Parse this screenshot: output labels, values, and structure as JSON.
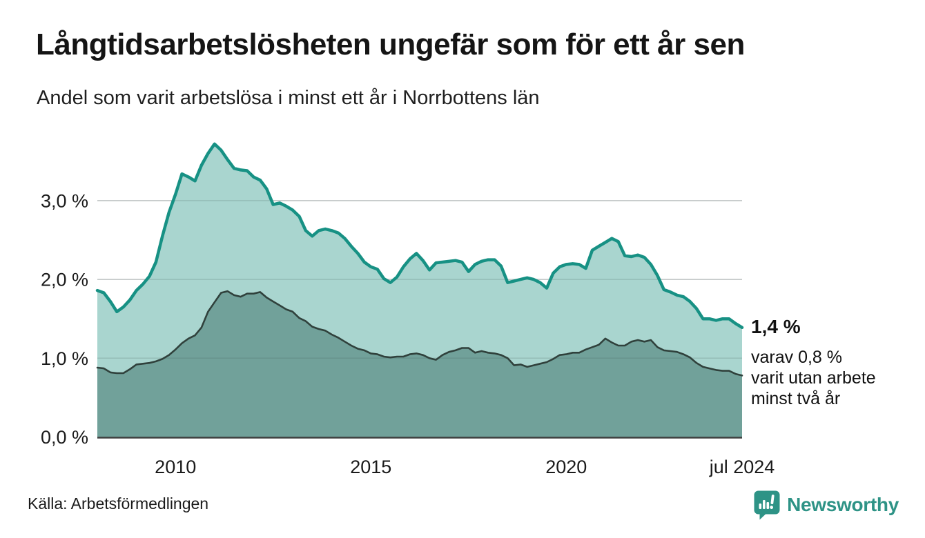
{
  "header": {
    "title": "Långtidsarbetslösheten ungefär som för ett år sen",
    "subtitle": "Andel som varit arbetslösa i minst ett år i Norrbottens län"
  },
  "annotation": {
    "latest_total_label": "1,4 %",
    "sub_lines": [
      "varav 0,8 %",
      "varit utan arbete",
      "minst två år"
    ]
  },
  "footer": {
    "source": "Källa: Arbetsförmedlingen",
    "logo_text": "Newsworthy"
  },
  "colors": {
    "series1_line": "#179184",
    "series1_fill": "#a9d5cf",
    "series2_line": "#30413c",
    "series2_fill": "#71a19a",
    "grid": "#dedede",
    "grid_overlay": "rgba(70,95,88,0.20)",
    "axis_baseline": "#3f3f3f",
    "text": "#1a1a1a",
    "logo_teal": "#2e9386"
  },
  "chart_data": {
    "type": "area",
    "title": "Långtidsarbetslösheten ungefär som för ett år sen",
    "subtitle": "Andel som varit arbetslösa i minst ett år i Norrbottens län",
    "unit": "%",
    "grid": true,
    "legend_position": "none",
    "x_start_year": 2008.0,
    "x_end_year": 2024.5,
    "x_interval_months": 2,
    "xlim": [
      2008.0,
      2024.5
    ],
    "ylim": [
      0,
      3.84
    ],
    "x_ticks": [
      {
        "t": 2010.0,
        "label": "2010"
      },
      {
        "t": 2015.0,
        "label": "2015"
      },
      {
        "t": 2020.0,
        "label": "2020"
      },
      {
        "t": 2024.5,
        "label": "jul 2024"
      }
    ],
    "y_ticks": [
      {
        "v": 0,
        "label": "0,0 %"
      },
      {
        "v": 1,
        "label": "1,0 %"
      },
      {
        "v": 2,
        "label": "2,0 %"
      },
      {
        "v": 3,
        "label": "3,0 %"
      }
    ],
    "latest": {
      "total_pct": 1.4,
      "two_years_pct": 0.8,
      "date": "jul 2024"
    },
    "series": [
      {
        "name": "Andel arbetslösa minst ett år",
        "values": [
          1.86,
          1.83,
          1.72,
          1.59,
          1.65,
          1.74,
          1.86,
          1.94,
          2.04,
          2.22,
          2.55,
          2.85,
          3.08,
          3.34,
          3.3,
          3.25,
          3.45,
          3.6,
          3.72,
          3.64,
          3.52,
          3.41,
          3.39,
          3.38,
          3.3,
          3.26,
          3.15,
          2.95,
          2.97,
          2.93,
          2.88,
          2.8,
          2.62,
          2.55,
          2.62,
          2.64,
          2.62,
          2.59,
          2.52,
          2.42,
          2.33,
          2.22,
          2.16,
          2.13,
          2.01,
          1.96,
          2.03,
          2.16,
          2.26,
          2.33,
          2.24,
          2.12,
          2.21,
          2.22,
          2.23,
          2.24,
          2.22,
          2.1,
          2.19,
          2.23,
          2.25,
          2.25,
          2.17,
          1.96,
          1.98,
          2.0,
          2.02,
          2.0,
          1.96,
          1.89,
          2.08,
          2.16,
          2.19,
          2.2,
          2.19,
          2.14,
          2.37,
          2.42,
          2.47,
          2.52,
          2.48,
          2.3,
          2.29,
          2.31,
          2.28,
          2.19,
          2.05,
          1.87,
          1.84,
          1.8,
          1.78,
          1.72,
          1.63,
          1.5,
          1.5,
          1.48,
          1.5,
          1.5,
          1.44,
          1.39
        ]
      },
      {
        "name": "Andel arbetslösa minst två år",
        "values": [
          0.88,
          0.87,
          0.82,
          0.81,
          0.81,
          0.86,
          0.92,
          0.93,
          0.94,
          0.96,
          0.99,
          1.04,
          1.11,
          1.19,
          1.25,
          1.29,
          1.39,
          1.59,
          1.71,
          1.83,
          1.85,
          1.8,
          1.78,
          1.82,
          1.82,
          1.84,
          1.77,
          1.72,
          1.67,
          1.62,
          1.59,
          1.51,
          1.47,
          1.4,
          1.37,
          1.35,
          1.3,
          1.26,
          1.21,
          1.16,
          1.12,
          1.1,
          1.06,
          1.05,
          1.02,
          1.01,
          1.02,
          1.02,
          1.05,
          1.06,
          1.04,
          1.0,
          0.98,
          1.04,
          1.08,
          1.1,
          1.13,
          1.13,
          1.07,
          1.09,
          1.07,
          1.06,
          1.04,
          1.0,
          0.91,
          0.92,
          0.89,
          0.91,
          0.93,
          0.95,
          0.99,
          1.04,
          1.05,
          1.07,
          1.07,
          1.11,
          1.14,
          1.17,
          1.25,
          1.2,
          1.16,
          1.16,
          1.21,
          1.23,
          1.21,
          1.23,
          1.14,
          1.1,
          1.09,
          1.08,
          1.05,
          1.01,
          0.94,
          0.89,
          0.87,
          0.85,
          0.84,
          0.84,
          0.8,
          0.78
        ]
      }
    ]
  }
}
